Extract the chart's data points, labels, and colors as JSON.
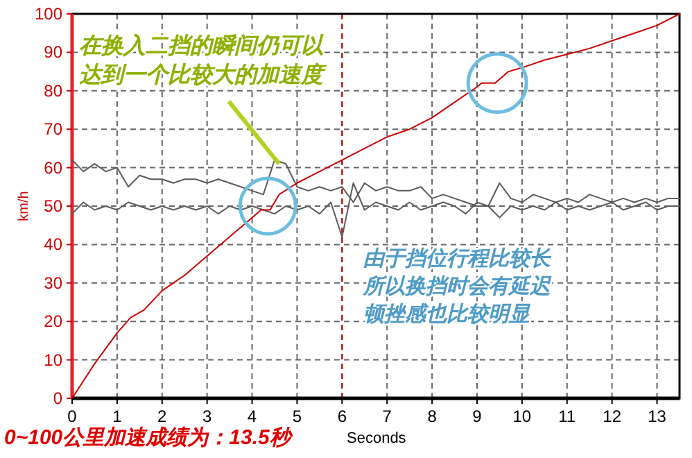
{
  "chart_data": {
    "type": "line",
    "xlabel": "Seconds",
    "ylabel": "km/h",
    "xlim": [
      0,
      13.5
    ],
    "ylim": [
      0,
      100
    ],
    "xticks": [
      0,
      1,
      2,
      3,
      4,
      5,
      6,
      7,
      8,
      9,
      10,
      11,
      12,
      13
    ],
    "yticks": [
      0,
      10,
      20,
      30,
      40,
      50,
      60,
      70,
      80,
      90,
      100
    ],
    "grid": true,
    "series": [
      {
        "color": "#5a5a5a",
        "x": [
          0,
          0.25,
          0.5,
          0.75,
          1,
          1.25,
          1.5,
          1.75,
          2,
          2.25,
          2.5,
          2.75,
          3,
          3.25,
          3.5,
          3.75,
          4,
          4.25,
          4.5,
          4.75,
          5,
          5.25,
          5.5,
          5.75,
          6,
          6.25,
          6.5,
          6.75,
          7,
          7.25,
          7.5,
          7.75,
          8,
          8.25,
          8.5,
          8.75,
          9,
          9.25,
          9.5,
          9.75,
          10,
          10.25,
          10.5,
          10.75,
          11,
          11.25,
          11.5,
          11.75,
          12,
          12.25,
          12.5,
          12.75,
          13,
          13.25,
          13.5
        ],
        "values": [
          62,
          59,
          61,
          59,
          60,
          55,
          58,
          57,
          57,
          56,
          57,
          57,
          56,
          57,
          56,
          55,
          54,
          53,
          62,
          61,
          55,
          54,
          55,
          54,
          55,
          51,
          56,
          54,
          55,
          54,
          54,
          55,
          52,
          53,
          52,
          51,
          50,
          50,
          56,
          52,
          51,
          53,
          52,
          51,
          52,
          51,
          53,
          52,
          51,
          52,
          51,
          52,
          51,
          52,
          52
        ]
      },
      {
        "color": "#5a5a5a",
        "x": [
          0,
          0.25,
          0.5,
          0.75,
          1,
          1.25,
          1.5,
          1.75,
          2,
          2.25,
          2.5,
          2.75,
          3,
          3.25,
          3.5,
          3.75,
          4,
          4.25,
          4.5,
          4.75,
          5,
          5.25,
          5.5,
          5.75,
          6,
          6.25,
          6.5,
          6.75,
          7,
          7.25,
          7.5,
          7.75,
          8,
          8.25,
          8.5,
          8.75,
          9,
          9.25,
          9.5,
          9.75,
          10,
          10.25,
          10.5,
          10.75,
          11,
          11.25,
          11.5,
          11.75,
          12,
          12.25,
          12.5,
          12.75,
          13,
          13.25,
          13.5
        ],
        "values": [
          48,
          51,
          49,
          50,
          49,
          51,
          50,
          49,
          50,
          49,
          50,
          49,
          50,
          48,
          50,
          49,
          50,
          49,
          48,
          50,
          49,
          50,
          48,
          51,
          42,
          56,
          49,
          51,
          50,
          49,
          51,
          49,
          50,
          51,
          50,
          48,
          51,
          50,
          47,
          50,
          49,
          50,
          49,
          51,
          49,
          50,
          49,
          50,
          51,
          49,
          50,
          51,
          49,
          50,
          50
        ]
      },
      {
        "color": "#cc0000",
        "x": [
          0,
          0.5,
          1,
          1.3,
          1.6,
          2,
          2.5,
          3,
          3.5,
          3.9,
          4.2,
          4.4,
          4.6,
          5,
          5.5,
          6,
          6.5,
          7,
          7.5,
          8,
          8.5,
          9,
          9.1,
          9.4,
          9.7,
          10,
          10.5,
          11,
          11.5,
          12,
          12.5,
          13,
          13.5
        ],
        "values": [
          0,
          9,
          17,
          21,
          23,
          28,
          32,
          37,
          42,
          46,
          49,
          49,
          53,
          56,
          59,
          62,
          65,
          68,
          70,
          73,
          77,
          81,
          82,
          82,
          85,
          86,
          88,
          89.5,
          91,
          93,
          95,
          97,
          100
        ]
      }
    ],
    "ref_lines": [
      {
        "axis": "x",
        "value": 6,
        "color": "#cc0000",
        "line_style": "dashed"
      }
    ],
    "annotations": [
      {
        "text": "在换入二挡的瞬间仍可以达到一个比较大的加速度",
        "x": 4.6,
        "y": 61
      },
      "由于挡位行程比较长所以换挡时会有延迟顿挫感也比较明显",
      "0~100公里加速成绩为：13.5秒"
    ]
  }
}
